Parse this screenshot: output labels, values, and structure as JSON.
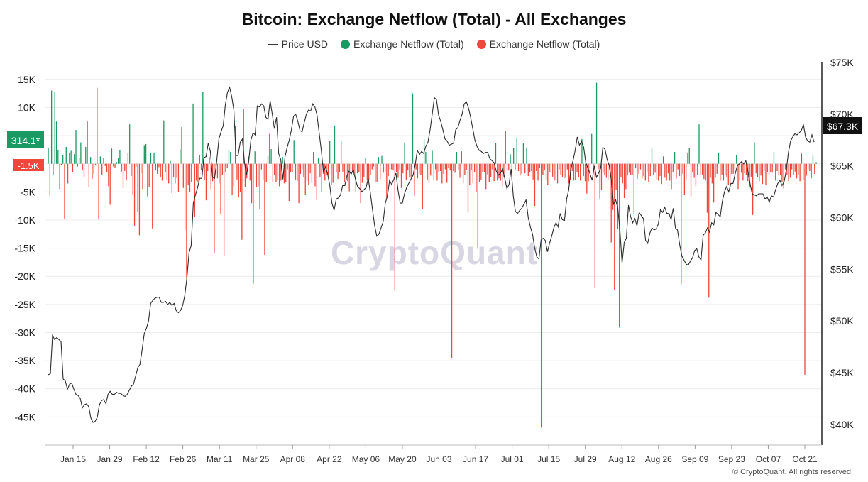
{
  "chart_data": {
    "type": "bar+line",
    "title": "Bitcoin: Exchange Netflow (Total) - All Exchanges",
    "legend": [
      {
        "name": "Price USD",
        "marker": "line",
        "color": "#333333"
      },
      {
        "name": "Exchange Netflow (Total)",
        "marker": "dot",
        "color": "#1a9a62"
      },
      {
        "name": "Exchange Netflow (Total)",
        "marker": "dot",
        "color": "#f0463c"
      }
    ],
    "left_axis": {
      "ticks": [
        15000,
        10000,
        5000,
        0,
        -5000,
        -10000,
        -15000,
        -20000,
        -25000,
        -30000,
        -35000,
        -40000,
        -45000
      ],
      "tick_labels": [
        "15K",
        "10K",
        "5K",
        "",
        "-5K",
        "-10K",
        "-15K",
        "-20K",
        "-25K",
        "-30K",
        "-35K",
        "-40K",
        "-45K"
      ],
      "ylim": [
        -50000,
        18000
      ]
    },
    "right_axis": {
      "ticks": [
        75000,
        70000,
        65000,
        60000,
        55000,
        50000,
        45000,
        40000
      ],
      "tick_labels": [
        "$75K",
        "$70K",
        "$65K",
        "$60K",
        "$55K",
        "$50K",
        "$45K",
        "$40K"
      ],
      "ylim": [
        38000,
        75000
      ]
    },
    "x_axis": {
      "tick_labels": [
        "Jan 15",
        "Jan 29",
        "Feb 12",
        "Feb 26",
        "Mar 11",
        "Mar 25",
        "Apr 08",
        "Apr 22",
        "May 06",
        "May 20",
        "Jun 03",
        "Jun 17",
        "Jul 01",
        "Jul 15",
        "Jul 29",
        "Aug 12",
        "Aug 26",
        "Sep 09",
        "Sep 23",
        "Oct 07",
        "Oct 21"
      ]
    },
    "markers": {
      "netflow_green": "314.1*",
      "netflow_red": "-1.5K",
      "price": "$67.3K"
    },
    "netflow": [
      2800,
      -5700,
      13000,
      -2000,
      12700,
      7500,
      2500,
      -4500,
      -200,
      1600,
      -9800,
      3000,
      -3500,
      2000,
      2300,
      -1500,
      1700,
      6000,
      -500,
      1000,
      3800,
      -1200,
      -2300,
      3000,
      7500,
      -4200,
      1200,
      -2700,
      -1800,
      -300,
      13500,
      -9900,
      1300,
      -2000,
      1100,
      -400,
      -1500,
      -4000,
      -7300,
      2700,
      -500,
      -800,
      300,
      1000,
      2400,
      -1400,
      -4300,
      -1300,
      -2800,
      1900,
      7000,
      -2200,
      -5500,
      -11000,
      -500,
      -8600,
      -12700,
      -1700,
      -4500,
      3300,
      3500,
      -5800,
      -4100,
      1900,
      -11500,
      2000,
      -1200,
      -1800,
      -600,
      -2300,
      -3000,
      7700,
      -1500,
      -2900,
      -3500,
      500,
      -5200,
      -2300,
      -3500,
      -2500,
      -5000,
      2600,
      6500,
      -4300,
      -11800,
      -20200,
      -3800,
      -5100,
      -3200,
      10700,
      -9500,
      -3000,
      -3200,
      1500,
      -1100,
      12800,
      -2900,
      -6500,
      -1300,
      1200,
      -4500,
      -3100,
      -15800,
      -500,
      -2600,
      -3500,
      -9000,
      -2000,
      -16300,
      -1500,
      -800,
      2400,
      2100,
      -5500,
      -4000,
      6700,
      -2800,
      -6000,
      -5000,
      -13500,
      9800,
      -4200,
      -2600,
      1300,
      -3000,
      -7000,
      -21300,
      2200,
      -4200,
      -4000,
      -8000,
      -1000,
      -2800,
      -16200,
      -3300,
      1400,
      5300,
      2600,
      -3200,
      -2000,
      -3300,
      -2800,
      -4000,
      -3000,
      1200,
      -3500,
      -3200,
      -1000,
      -6600,
      -1500,
      -1500,
      4200,
      -2800,
      -3100,
      -7000,
      -1800,
      -1000,
      -2300,
      -5600,
      -3100,
      -3800,
      -1700,
      -3400,
      2100,
      -4000,
      -6400,
      1100,
      -2300,
      -5000,
      -1800,
      -3000,
      -2000,
      -2000,
      4100,
      -3800,
      -3400,
      6800,
      -1600,
      -2700,
      -1500,
      4000,
      -1400,
      -3200,
      -2200,
      -3100,
      -4900,
      -1800,
      -1500,
      -2000,
      -4900,
      -1700,
      -1500,
      -7000,
      -3400,
      -2300,
      1000,
      -2900,
      -3000,
      -2000,
      -1000,
      -500,
      -3200,
      -3300,
      1200,
      -2700,
      1400,
      -1600,
      -1500,
      -6200,
      -2200,
      -1000,
      -1000,
      -1200,
      -22600,
      -1500,
      -2500,
      -1000,
      -4300,
      -1700,
      3800,
      -2800,
      -1200,
      -2400,
      -2500,
      12500,
      -5700,
      -1000,
      -2600,
      -1800,
      -2000,
      -8000,
      4300,
      2100,
      -2800,
      -3400,
      -2100,
      2300,
      -3000,
      -1000,
      -3000,
      -1500,
      -1300,
      -3500,
      -1800,
      -1000,
      -3400,
      -700,
      -1200,
      -34600,
      -1300,
      -1600,
      2100,
      -1000,
      -2500,
      2200,
      -3500,
      -2000,
      -1100,
      -8700,
      -3800,
      -1200,
      -3500,
      -1500,
      -5000,
      -15100,
      -3200,
      -2800,
      -1500,
      -1500,
      -4500,
      -1900,
      -3300,
      -2400,
      -1000,
      -3100,
      3700,
      -3000,
      -2600,
      -3000,
      -4200,
      -2300,
      5800,
      -1200,
      -1200,
      1700,
      -3000,
      2800,
      -1000,
      4500,
      -1300,
      -2100,
      -1800,
      3600,
      -1700,
      2900,
      -2200,
      -1500,
      -1300,
      -2800,
      -7500,
      -1300,
      -3000,
      -800,
      -46900,
      -2000,
      -1200,
      -3000,
      -3700,
      -1500,
      -1600,
      -2300,
      -3000,
      -2800,
      -3500,
      -1000,
      -2000,
      -2300,
      -2600,
      -2500,
      -1000,
      -3500,
      -2800,
      -1300,
      -3000,
      -2900,
      -1500,
      -2400,
      -3000,
      4400,
      -2200,
      -3100,
      -5300,
      -3100,
      -1800,
      5300,
      -1600,
      -22100,
      14400,
      -1000,
      -6200,
      -4600,
      -1600,
      -2000,
      -2500,
      -2800,
      -1000,
      -14000,
      -8200,
      -22500,
      -4700,
      -11600,
      -29100,
      -2400,
      -3500,
      -6100,
      -4500,
      -2100,
      -1600,
      -2000,
      -2000,
      -9000,
      -800,
      -2700,
      -1800,
      -1000,
      -2600,
      -2200,
      -3000,
      -1500,
      -3300,
      -2200,
      2800,
      -2000,
      -1600,
      -2800,
      -3000,
      -2200,
      -3600,
      1300,
      -2500,
      -3000,
      -1700,
      -3000,
      -4500,
      -1500,
      2100,
      -2600,
      -1000,
      -2200,
      -21400,
      -1800,
      -5600,
      -2900,
      2000,
      2800,
      -5800,
      -1500,
      -2500,
      -4000,
      -2000,
      7000,
      -2000,
      -1900,
      -2700,
      -3000,
      -8700,
      -23800,
      -2500,
      -3500,
      -6900,
      -2500,
      -1800,
      2000,
      -3000,
      -2000,
      -3000,
      -2000,
      -2300,
      -3700,
      -3500,
      -1800,
      -1800,
      -1000,
      1600,
      -4500,
      -3000,
      -1600,
      -3000,
      -1700,
      -2000,
      -3100,
      -4200,
      -2300,
      -9100,
      3800,
      -1700,
      -2400,
      -3100,
      -2100,
      -3600,
      -1300,
      -3700,
      -1500,
      -2000,
      -1500,
      -1600,
      2100,
      -3000,
      -1300,
      -2100,
      -2000,
      -3200,
      -4400,
      -1000,
      -2000,
      -3100,
      -2500,
      -1000,
      -2000,
      -1400,
      -2600,
      -2000,
      -3100,
      1800,
      -2800,
      -37500,
      -2100,
      -1000,
      -1300,
      -2600,
      1600,
      -1800,
      300
    ],
    "price": [
      44800,
      44900,
      48600,
      48200,
      48400,
      48200,
      48000,
      44400,
      44200,
      43400,
      43900,
      44000,
      43400,
      42900,
      42800,
      42500,
      41600,
      41900,
      42000,
      41700,
      40600,
      40200,
      40300,
      40700,
      41900,
      42300,
      42400,
      42000,
      42900,
      43200,
      42900,
      42900,
      43100,
      43000,
      43000,
      42800,
      42700,
      42900,
      43300,
      43700,
      43900,
      44700,
      45500,
      45800,
      47200,
      48800,
      49300,
      50000,
      51700,
      52000,
      52200,
      52300,
      52300,
      51800,
      51800,
      51900,
      51600,
      51800,
      51500,
      51700,
      51000,
      50800,
      51000,
      51500,
      52500,
      54200,
      56600,
      57300,
      61400,
      62200,
      62900,
      63800,
      63800,
      65800,
      65900,
      67200,
      66400,
      63900,
      63800,
      65500,
      67600,
      68300,
      68900,
      70900,
      72100,
      72600,
      71700,
      70400,
      66000,
      66000,
      67300,
      67600,
      65300,
      64100,
      65500,
      67500,
      68200,
      68000,
      70800,
      70700,
      71000,
      70800,
      69700,
      69500,
      71300,
      70000,
      68600,
      69700,
      66200,
      65600,
      63700,
      65900,
      66800,
      67500,
      68500,
      69800,
      70000,
      69300,
      68400,
      68300,
      69200,
      70000,
      70400,
      70300,
      71000,
      70700,
      69900,
      68200,
      66500,
      64400,
      64900,
      64200,
      63100,
      61400,
      60700,
      61800,
      61900,
      62200,
      63100,
      63100,
      64000,
      64500,
      64200,
      64600,
      63700,
      63000,
      62800,
      62500,
      62700,
      62900,
      63800,
      62400,
      60800,
      59200,
      58200,
      58400,
      59000,
      59600,
      61400,
      62100,
      63600,
      63200,
      63700,
      64300,
      62600,
      61400,
      61400,
      62300,
      62900,
      63300,
      63700,
      64100,
      65100,
      66500,
      66100,
      66400,
      66200,
      66900,
      67300,
      68500,
      70000,
      71600,
      71400,
      69900,
      69300,
      68500,
      67600,
      67400,
      67000,
      67100,
      67200,
      68500,
      68700,
      69400,
      70000,
      71000,
      71200,
      70600,
      69700,
      68600,
      67500,
      66900,
      66500,
      66400,
      66200,
      66300,
      66300,
      65700,
      65500,
      65300,
      64500,
      64100,
      64300,
      64700,
      63800,
      62800,
      63200,
      64700,
      62100,
      60600,
      60400,
      60700,
      60900,
      61300,
      61700,
      60000,
      59100,
      58400,
      57100,
      56200,
      56000,
      57800,
      58000,
      57800,
      56700,
      57500,
      58200,
      59000,
      59500,
      59100,
      60400,
      59800,
      59700,
      61800,
      62700,
      64800,
      65500,
      66500,
      67800,
      67000,
      67400,
      66800,
      65300,
      64800,
      64200,
      63600,
      65000,
      63900,
      64300,
      64800,
      66800,
      66600,
      65600,
      65000,
      63500,
      61300,
      61700,
      60900,
      58700,
      55600,
      57600,
      58000,
      61200,
      60100,
      59500,
      59900,
      59200,
      60500,
      60200,
      59900,
      57800,
      57500,
      58500,
      59000,
      58800,
      58900,
      59400,
      60800,
      60500,
      61000,
      60400,
      60400,
      59800,
      60900,
      59000,
      58800,
      57400,
      56300,
      55900,
      55500,
      55400,
      55800,
      56100,
      56800,
      57000,
      56200,
      55900,
      58300,
      58500,
      59000,
      58600,
      59500,
      59300,
      60500,
      60300,
      60100,
      61600,
      62500,
      63000,
      62500,
      63300,
      63300,
      64200,
      65000,
      65200,
      65400,
      65200,
      65500,
      64500,
      63300,
      62300,
      62200,
      62100,
      62300,
      62300,
      62300,
      61800,
      62000,
      61500,
      62100,
      62000,
      62700,
      63300,
      63600,
      63100,
      63500,
      64600,
      66300,
      67400,
      67800,
      68100,
      68000,
      68200,
      68400,
      69000,
      67800,
      67400,
      67300,
      68000,
      67300
    ],
    "watermark": "CryptoQuant",
    "copyright": "© CryptoQuant. All rights reserved"
  }
}
